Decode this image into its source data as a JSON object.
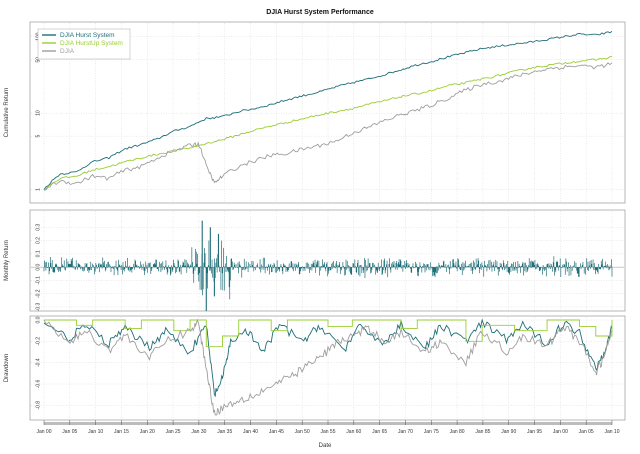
{
  "chart_data": {
    "type": "line",
    "title": "DJIA Hurst System Performance",
    "xlabel": "Date",
    "x_ticks": [
      "Jan 00",
      "Jan 05",
      "Jan 10",
      "Jan 15",
      "Jan 20",
      "Jan 25",
      "Jan 30",
      "Jan 35",
      "Jan 40",
      "Jan 45",
      "Jan 50",
      "Jan 55",
      "Jan 60",
      "Jan 65",
      "Jan 70",
      "Jan 75",
      "Jan 80",
      "Jan 85",
      "Jan 90",
      "Jan 95",
      "Jan 00",
      "Jan 05",
      "Jan 10"
    ],
    "legend": {
      "placement": "top-left"
    },
    "colors": {
      "hurst": "#1f6e78",
      "hurstup": "#9acd32",
      "djia": "#9e9e9e",
      "grid": "#cccccc",
      "box": "#888888"
    },
    "panels": [
      {
        "name": "cumulative",
        "ylabel": "Cumulative Return",
        "y_scale": "log",
        "y_ticks": [
          "1",
          "5",
          "10",
          "50",
          "100"
        ],
        "series": [
          {
            "name": "DJIA Hurst System",
            "key": "hurst",
            "points": [
              [
                0,
                1
              ],
              [
                2,
                1.6
              ],
              [
                4,
                1.7
              ],
              [
                6,
                2.3
              ],
              [
                8,
                2.6
              ],
              [
                10,
                3.4
              ],
              [
                12,
                3.9
              ],
              [
                14,
                4.6
              ],
              [
                16,
                5.8
              ],
              [
                18,
                6.7
              ],
              [
                20,
                8.5
              ],
              [
                22,
                9.0
              ],
              [
                24,
                10.5
              ],
              [
                26,
                11.5
              ],
              [
                28,
                13
              ],
              [
                30,
                15
              ],
              [
                32,
                17
              ],
              [
                34,
                19
              ],
              [
                36,
                22
              ],
              [
                38,
                25
              ],
              [
                40,
                28
              ],
              [
                42,
                32
              ],
              [
                44,
                37
              ],
              [
                46,
                43
              ],
              [
                48,
                48
              ],
              [
                50,
                55
              ],
              [
                52,
                62
              ],
              [
                54,
                70
              ],
              [
                56,
                75
              ],
              [
                58,
                80
              ],
              [
                60,
                85
              ],
              [
                62,
                92
              ],
              [
                64,
                100
              ],
              [
                66,
                108
              ],
              [
                68,
                105
              ],
              [
                70,
                116
              ]
            ]
          },
          {
            "name": "DJIA HurstUp System",
            "key": "hurstup",
            "points": [
              [
                0,
                1
              ],
              [
                2,
                1.4
              ],
              [
                4,
                1.5
              ],
              [
                6,
                1.8
              ],
              [
                8,
                2.0
              ],
              [
                10,
                2.3
              ],
              [
                12,
                2.6
              ],
              [
                14,
                2.9
              ],
              [
                16,
                3.2
              ],
              [
                18,
                3.5
              ],
              [
                20,
                4.0
              ],
              [
                22,
                4.5
              ],
              [
                24,
                5.2
              ],
              [
                26,
                6.0
              ],
              [
                28,
                6.8
              ],
              [
                30,
                7.6
              ],
              [
                32,
                8.5
              ],
              [
                34,
                9.5
              ],
              [
                36,
                10.5
              ],
              [
                38,
                11.5
              ],
              [
                40,
                13
              ],
              [
                42,
                14.5
              ],
              [
                44,
                16.5
              ],
              [
                46,
                18
              ],
              [
                48,
                20
              ],
              [
                50,
                23
              ],
              [
                52,
                25
              ],
              [
                54,
                28
              ],
              [
                56,
                31
              ],
              [
                58,
                35
              ],
              [
                60,
                39
              ],
              [
                62,
                42
              ],
              [
                64,
                45
              ],
              [
                66,
                48
              ],
              [
                68,
                50
              ],
              [
                70,
                54
              ]
            ]
          },
          {
            "name": "DJIA",
            "key": "djia",
            "points": [
              [
                0,
                1
              ],
              [
                2,
                1.3
              ],
              [
                4,
                1.2
              ],
              [
                6,
                1.5
              ],
              [
                8,
                1.4
              ],
              [
                10,
                1.8
              ],
              [
                12,
                2.0
              ],
              [
                14,
                2.6
              ],
              [
                16,
                3.2
              ],
              [
                18,
                3.8
              ],
              [
                19,
                4.0
              ],
              [
                20,
                2.0
              ],
              [
                21,
                1.2
              ],
              [
                22,
                1.5
              ],
              [
                24,
                2.0
              ],
              [
                26,
                2.4
              ],
              [
                28,
                2.8
              ],
              [
                30,
                3.0
              ],
              [
                32,
                3.4
              ],
              [
                34,
                3.8
              ],
              [
                36,
                4.3
              ],
              [
                38,
                5.5
              ],
              [
                40,
                6.5
              ],
              [
                42,
                8.0
              ],
              [
                44,
                9.5
              ],
              [
                46,
                11
              ],
              [
                48,
                13
              ],
              [
                50,
                16
              ],
              [
                52,
                20
              ],
              [
                54,
                24
              ],
              [
                56,
                26
              ],
              [
                58,
                30
              ],
              [
                60,
                34
              ],
              [
                62,
                38
              ],
              [
                64,
                40
              ],
              [
                66,
                42
              ],
              [
                68,
                40
              ],
              [
                70,
                44
              ]
            ]
          }
        ]
      },
      {
        "name": "monthly",
        "ylabel": "Monthly Return",
        "y_range": [
          -0.3,
          0.4
        ],
        "y_ticks": [
          "0.3",
          "0.2",
          "0.1",
          "0.0",
          "-0.1",
          "-0.2",
          "-0.3"
        ],
        "series_key": "hurst",
        "noise_note": "",
        "crash_peaks": [
          [
            19.5,
            0.35
          ],
          [
            20.0,
            -0.33
          ],
          [
            20.5,
            0.3
          ],
          [
            21.0,
            -0.22
          ],
          [
            21.5,
            0.25
          ]
        ]
      },
      {
        "name": "drawdown",
        "ylabel": "Drawdown",
        "y_range": [
          -0.9,
          0.0
        ],
        "y_ticks": [
          "0.0",
          "-0.2",
          "-0.4",
          "-0.6",
          "-0.8"
        ],
        "series": [
          {
            "key": "hurst",
            "points": [
              [
                0,
                0
              ],
              [
                3,
                -0.18
              ],
              [
                5,
                -0.05
              ],
              [
                8,
                -0.22
              ],
              [
                10,
                -0.08
              ],
              [
                13,
                -0.25
              ],
              [
                15,
                -0.1
              ],
              [
                18,
                -0.3
              ],
              [
                20,
                -0.05
              ],
              [
                21,
                -0.7
              ],
              [
                22,
                -0.55
              ],
              [
                23,
                -0.2
              ],
              [
                25,
                -0.1
              ],
              [
                27,
                -0.3
              ],
              [
                29,
                -0.05
              ],
              [
                32,
                -0.2
              ],
              [
                34,
                -0.05
              ],
              [
                37,
                -0.28
              ],
              [
                39,
                -0.06
              ],
              [
                42,
                -0.22
              ],
              [
                44,
                -0.04
              ],
              [
                47,
                -0.26
              ],
              [
                49,
                -0.05
              ],
              [
                52,
                -0.2
              ],
              [
                54,
                -0.03
              ],
              [
                57,
                -0.18
              ],
              [
                59,
                -0.05
              ],
              [
                62,
                -0.22
              ],
              [
                64,
                -0.03
              ],
              [
                66,
                -0.12
              ],
              [
                68,
                -0.45
              ],
              [
                69,
                -0.3
              ],
              [
                70,
                -0.08
              ]
            ]
          },
          {
            "key": "hurstup",
            "points": [
              [
                0,
                0
              ],
              [
                4,
                -0.05
              ],
              [
                6,
                0
              ],
              [
                10,
                -0.08
              ],
              [
                12,
                0
              ],
              [
                16,
                -0.1
              ],
              [
                18,
                0
              ],
              [
                20,
                -0.25
              ],
              [
                22,
                -0.15
              ],
              [
                24,
                0
              ],
              [
                28,
                -0.1
              ],
              [
                30,
                0
              ],
              [
                35,
                -0.06
              ],
              [
                38,
                0
              ],
              [
                44,
                -0.08
              ],
              [
                46,
                0
              ],
              [
                52,
                -0.2
              ],
              [
                54,
                -0.05
              ],
              [
                58,
                -0.1
              ],
              [
                62,
                0
              ],
              [
                66,
                -0.06
              ],
              [
                68,
                -0.15
              ],
              [
                70,
                0
              ]
            ]
          },
          {
            "key": "djia",
            "points": [
              [
                0,
                0
              ],
              [
                3,
                -0.22
              ],
              [
                5,
                -0.1
              ],
              [
                8,
                -0.28
              ],
              [
                10,
                -0.14
              ],
              [
                13,
                -0.35
              ],
              [
                15,
                -0.2
              ],
              [
                18,
                -0.1
              ],
              [
                19,
                -0.02
              ],
              [
                20,
                -0.45
              ],
              [
                21,
                -0.88
              ],
              [
                22,
                -0.82
              ],
              [
                24,
                -0.75
              ],
              [
                26,
                -0.7
              ],
              [
                28,
                -0.62
              ],
              [
                30,
                -0.55
              ],
              [
                32,
                -0.45
              ],
              [
                34,
                -0.35
              ],
              [
                36,
                -0.22
              ],
              [
                38,
                -0.15
              ],
              [
                40,
                -0.08
              ],
              [
                42,
                -0.2
              ],
              [
                44,
                -0.12
              ],
              [
                47,
                -0.3
              ],
              [
                49,
                -0.2
              ],
              [
                52,
                -0.4
              ],
              [
                54,
                -0.1
              ],
              [
                57,
                -0.3
              ],
              [
                59,
                -0.15
              ],
              [
                62,
                -0.25
              ],
              [
                64,
                -0.05
              ],
              [
                66,
                -0.2
              ],
              [
                68,
                -0.5
              ],
              [
                69,
                -0.35
              ],
              [
                70,
                -0.1
              ]
            ]
          }
        ]
      }
    ],
    "x_range": [
      0,
      70
    ]
  }
}
